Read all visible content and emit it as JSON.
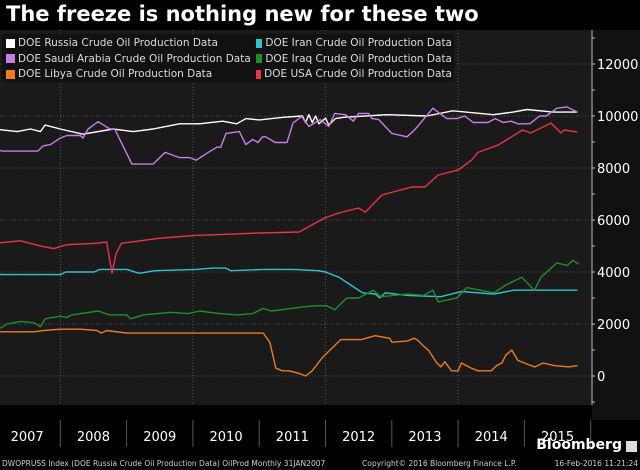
{
  "title": "The freeze is nothing new for these two",
  "chart_data": {
    "type": "line",
    "title": "The freeze is nothing new for these two",
    "xlabel": "",
    "ylabel": "",
    "x_ticks": [
      "2007",
      "2008",
      "2009",
      "2010",
      "2011",
      "2012",
      "2013",
      "2014",
      "2015"
    ],
    "xlim": [
      2007.0,
      2016.0
    ],
    "ylim": [
      -1200,
      13000
    ],
    "y_ticks": [
      0,
      2000,
      4000,
      6000,
      8000,
      10000,
      12000
    ],
    "y_tick_labels": [
      "0",
      "2000",
      "4000",
      "6000",
      "8000",
      "10000",
      "12000"
    ],
    "grid": true,
    "legend_position": "top-left",
    "series": [
      {
        "name": "DOE Russia Crude Oil Production Data",
        "color": "#ffffff",
        "points": [
          [
            2007.0,
            9500
          ],
          [
            2007.35,
            9400
          ],
          [
            2007.55,
            9500
          ],
          [
            2007.7,
            9400
          ],
          [
            2007.77,
            9650
          ],
          [
            2008.0,
            9500
          ],
          [
            2008.34,
            9300
          ],
          [
            2008.8,
            9500
          ],
          [
            2009.1,
            9400
          ],
          [
            2009.4,
            9500
          ],
          [
            2009.8,
            9700
          ],
          [
            2010.1,
            9700
          ],
          [
            2010.45,
            9800
          ],
          [
            2010.66,
            9700
          ],
          [
            2010.8,
            9900
          ],
          [
            2011.0,
            9850
          ],
          [
            2011.36,
            9950
          ],
          [
            2011.65,
            10000
          ],
          [
            2011.7,
            9750
          ],
          [
            2011.75,
            10050
          ],
          [
            2011.8,
            9750
          ],
          [
            2011.85,
            10000
          ],
          [
            2011.9,
            9700
          ],
          [
            2012.0,
            9920
          ],
          [
            2012.05,
            9650
          ],
          [
            2012.15,
            9900
          ],
          [
            2012.27,
            9950
          ],
          [
            2012.93,
            10050
          ],
          [
            2013.53,
            10000
          ],
          [
            2013.92,
            10200
          ],
          [
            2014.53,
            10050
          ],
          [
            2014.83,
            10150
          ],
          [
            2015.04,
            10250
          ],
          [
            2015.43,
            10150
          ],
          [
            2015.8,
            10150
          ]
        ]
      },
      {
        "name": "DOE Saudi Arabia Crude Oil Production Data",
        "color": "#c77fe6",
        "points": [
          [
            2007.0,
            8770
          ],
          [
            2007.12,
            8650
          ],
          [
            2007.66,
            8650
          ],
          [
            2007.74,
            8850
          ],
          [
            2007.85,
            8900
          ],
          [
            2008.0,
            9150
          ],
          [
            2008.1,
            9250
          ],
          [
            2008.3,
            9250
          ],
          [
            2008.34,
            9150
          ],
          [
            2008.42,
            9500
          ],
          [
            2008.57,
            9780
          ],
          [
            2008.75,
            9500
          ],
          [
            2008.82,
            9500
          ],
          [
            2009.08,
            8150
          ],
          [
            2009.4,
            8150
          ],
          [
            2009.58,
            8600
          ],
          [
            2009.8,
            8400
          ],
          [
            2009.95,
            8400
          ],
          [
            2010.05,
            8300
          ],
          [
            2010.2,
            8550
          ],
          [
            2010.36,
            8800
          ],
          [
            2010.42,
            8800
          ],
          [
            2010.5,
            9330
          ],
          [
            2010.7,
            9400
          ],
          [
            2010.8,
            8900
          ],
          [
            2010.9,
            9100
          ],
          [
            2010.98,
            8980
          ],
          [
            2011.05,
            9200
          ],
          [
            2011.1,
            9200
          ],
          [
            2011.24,
            8980
          ],
          [
            2011.42,
            8980
          ],
          [
            2011.51,
            9730
          ],
          [
            2011.64,
            9980
          ],
          [
            2011.75,
            9600
          ],
          [
            2011.92,
            9860
          ],
          [
            2012.05,
            9600
          ],
          [
            2012.14,
            10100
          ],
          [
            2012.3,
            10050
          ],
          [
            2012.42,
            9800
          ],
          [
            2012.5,
            10100
          ],
          [
            2012.65,
            10100
          ],
          [
            2012.7,
            9900
          ],
          [
            2012.8,
            9870
          ],
          [
            2013.0,
            9330
          ],
          [
            2013.23,
            9200
          ],
          [
            2013.35,
            9480
          ],
          [
            2013.62,
            10300
          ],
          [
            2013.83,
            9900
          ],
          [
            2013.98,
            9900
          ],
          [
            2014.1,
            10000
          ],
          [
            2014.23,
            9750
          ],
          [
            2014.45,
            9750
          ],
          [
            2014.56,
            9900
          ],
          [
            2014.68,
            9750
          ],
          [
            2014.8,
            9800
          ],
          [
            2014.9,
            9700
          ],
          [
            2015.08,
            9700
          ],
          [
            2015.23,
            10000
          ],
          [
            2015.33,
            10000
          ],
          [
            2015.49,
            10300
          ],
          [
            2015.64,
            10350
          ],
          [
            2015.8,
            10150
          ]
        ]
      },
      {
        "name": "DOE Libya Crude Oil Production Data",
        "color": "#f07a1e",
        "points": [
          [
            2007.0,
            1700
          ],
          [
            2007.6,
            1700
          ],
          [
            2007.75,
            1750
          ],
          [
            2008.0,
            1800
          ],
          [
            2008.3,
            1800
          ],
          [
            2008.55,
            1750
          ],
          [
            2008.62,
            1650
          ],
          [
            2008.7,
            1750
          ],
          [
            2009.0,
            1650
          ],
          [
            2011.06,
            1650
          ],
          [
            2011.16,
            1300
          ],
          [
            2011.25,
            300
          ],
          [
            2011.35,
            200
          ],
          [
            2011.45,
            200
          ],
          [
            2011.6,
            100
          ],
          [
            2011.7,
            0
          ],
          [
            2011.8,
            200
          ],
          [
            2011.95,
            700
          ],
          [
            2012.23,
            1400
          ],
          [
            2012.54,
            1400
          ],
          [
            2012.75,
            1550
          ],
          [
            2012.97,
            1450
          ],
          [
            2013.0,
            1300
          ],
          [
            2013.24,
            1350
          ],
          [
            2013.33,
            1450
          ],
          [
            2013.38,
            1400
          ],
          [
            2013.48,
            1150
          ],
          [
            2013.55,
            1000
          ],
          [
            2013.68,
            500
          ],
          [
            2013.74,
            350
          ],
          [
            2013.8,
            550
          ],
          [
            2013.9,
            200
          ],
          [
            2014.0,
            200
          ],
          [
            2014.05,
            500
          ],
          [
            2014.2,
            300
          ],
          [
            2014.3,
            200
          ],
          [
            2014.5,
            200
          ],
          [
            2014.58,
            400
          ],
          [
            2014.66,
            500
          ],
          [
            2014.72,
            800
          ],
          [
            2014.81,
            1000
          ],
          [
            2014.9,
            600
          ],
          [
            2015.1,
            400
          ],
          [
            2015.16,
            350
          ],
          [
            2015.28,
            500
          ],
          [
            2015.45,
            400
          ],
          [
            2015.67,
            350
          ],
          [
            2015.8,
            400
          ]
        ]
      },
      {
        "name": "DOE Iran Crude Oil Production Data",
        "color": "#2ec4cc",
        "points": [
          [
            2007.0,
            4000
          ],
          [
            2007.1,
            3900
          ],
          [
            2008.0,
            3900
          ],
          [
            2008.08,
            4000
          ],
          [
            2008.51,
            4000
          ],
          [
            2008.6,
            4100
          ],
          [
            2009.0,
            4100
          ],
          [
            2009.19,
            3950
          ],
          [
            2009.43,
            4050
          ],
          [
            2010.05,
            4100
          ],
          [
            2010.3,
            4150
          ],
          [
            2010.5,
            4150
          ],
          [
            2010.57,
            4050
          ],
          [
            2011.1,
            4100
          ],
          [
            2011.5,
            4100
          ],
          [
            2011.89,
            4050
          ],
          [
            2012.0,
            4000
          ],
          [
            2012.2,
            3800
          ],
          [
            2012.38,
            3500
          ],
          [
            2012.56,
            3200
          ],
          [
            2012.75,
            3150
          ],
          [
            2012.82,
            3000
          ],
          [
            2012.9,
            3200
          ],
          [
            2013.24,
            3100
          ],
          [
            2013.74,
            3050
          ],
          [
            2014.05,
            3250
          ],
          [
            2014.54,
            3150
          ],
          [
            2014.84,
            3300
          ],
          [
            2015.8,
            3300
          ]
        ]
      },
      {
        "name": "DOE Iraq Crude Oil Production Data",
        "color": "#1f8f2a",
        "points": [
          [
            2007.0,
            1700
          ],
          [
            2007.2,
            2000
          ],
          [
            2007.4,
            2100
          ],
          [
            2007.6,
            2050
          ],
          [
            2007.7,
            1900
          ],
          [
            2007.77,
            2200
          ],
          [
            2008.0,
            2300
          ],
          [
            2008.1,
            2250
          ],
          [
            2008.17,
            2350
          ],
          [
            2008.57,
            2500
          ],
          [
            2008.75,
            2350
          ],
          [
            2009.0,
            2350
          ],
          [
            2009.06,
            2200
          ],
          [
            2009.25,
            2350
          ],
          [
            2009.67,
            2450
          ],
          [
            2009.93,
            2400
          ],
          [
            2010.1,
            2500
          ],
          [
            2010.4,
            2400
          ],
          [
            2010.66,
            2350
          ],
          [
            2010.9,
            2400
          ],
          [
            2011.06,
            2600
          ],
          [
            2011.18,
            2500
          ],
          [
            2011.65,
            2650
          ],
          [
            2011.83,
            2700
          ],
          [
            2012.02,
            2700
          ],
          [
            2012.14,
            2550
          ],
          [
            2012.32,
            3000
          ],
          [
            2012.5,
            3000
          ],
          [
            2012.72,
            3300
          ],
          [
            2012.83,
            3050
          ],
          [
            2013.24,
            3150
          ],
          [
            2013.48,
            3100
          ],
          [
            2013.62,
            3300
          ],
          [
            2013.7,
            2850
          ],
          [
            2013.98,
            3000
          ],
          [
            2014.13,
            3400
          ],
          [
            2014.54,
            3200
          ],
          [
            2014.72,
            3500
          ],
          [
            2014.96,
            3800
          ],
          [
            2015.15,
            3300
          ],
          [
            2015.25,
            3800
          ],
          [
            2015.49,
            4350
          ],
          [
            2015.65,
            4250
          ],
          [
            2015.73,
            4450
          ],
          [
            2015.82,
            4300
          ]
        ]
      },
      {
        "name": "DOE USA Crude Oil Production Data",
        "color": "#e8334a",
        "points": [
          [
            2007.0,
            5100
          ],
          [
            2007.4,
            5200
          ],
          [
            2007.7,
            5000
          ],
          [
            2007.9,
            4900
          ],
          [
            2008.1,
            5050
          ],
          [
            2008.5,
            5100
          ],
          [
            2008.7,
            5150
          ],
          [
            2008.78,
            3950
          ],
          [
            2008.84,
            4700
          ],
          [
            2008.92,
            5100
          ],
          [
            2009.2,
            5200
          ],
          [
            2009.5,
            5300
          ],
          [
            2010.0,
            5400
          ],
          [
            2010.5,
            5450
          ],
          [
            2011.0,
            5500
          ],
          [
            2011.6,
            5540
          ],
          [
            2011.99,
            6080
          ],
          [
            2012.2,
            6270
          ],
          [
            2012.5,
            6460
          ],
          [
            2012.6,
            6300
          ],
          [
            2012.85,
            6960
          ],
          [
            2013.3,
            7270
          ],
          [
            2013.5,
            7270
          ],
          [
            2013.7,
            7730
          ],
          [
            2014.0,
            7920
          ],
          [
            2014.2,
            8300
          ],
          [
            2014.3,
            8600
          ],
          [
            2014.6,
            8880
          ],
          [
            2014.8,
            9190
          ],
          [
            2014.97,
            9460
          ],
          [
            2015.1,
            9350
          ],
          [
            2015.4,
            9730
          ],
          [
            2015.55,
            9350
          ],
          [
            2015.6,
            9460
          ],
          [
            2015.8,
            9380
          ]
        ]
      }
    ]
  },
  "brand": "Bloomberg",
  "footer": {
    "left": "DWOPRUSS Index (DOE Russia Crude Oil Production Data) OilProd  Monthly 31JAN2007",
    "center": "Copyright© 2016 Bloomberg Finance L.P.",
    "right": "16-Feb-2016 11:21:24"
  }
}
